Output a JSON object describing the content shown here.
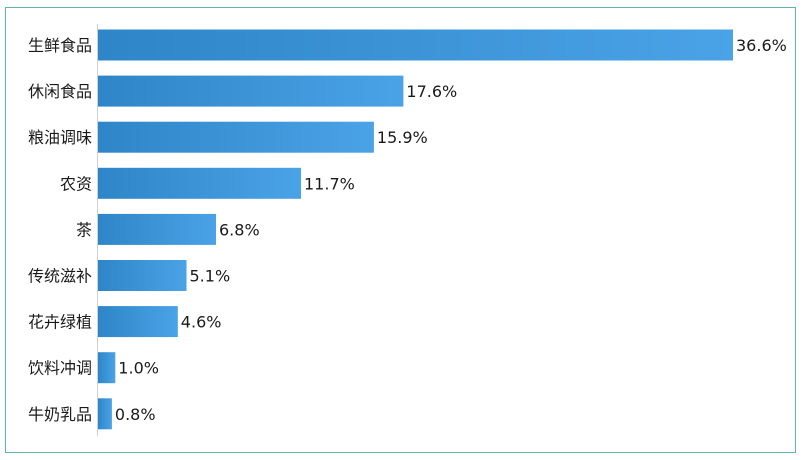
{
  "chart_data": {
    "type": "bar",
    "orientation": "horizontal",
    "categories": [
      "生鲜食品",
      "休闲食品",
      "粮油调味",
      "农资",
      "茶",
      "传统滋补",
      "花卉绿植",
      "饮料冲调",
      "牛奶乳品"
    ],
    "values": [
      36.6,
      17.6,
      15.9,
      11.7,
      6.8,
      5.1,
      4.6,
      1.0,
      0.8
    ],
    "value_labels": [
      "36.6%",
      "17.6%",
      "15.9%",
      "11.7%",
      "6.8%",
      "5.1%",
      "4.6%",
      "1.0%",
      "0.8%"
    ],
    "title": "",
    "xlabel": "",
    "ylabel": "",
    "xlim": [
      0,
      36.6
    ],
    "grid": false,
    "legend": "none",
    "colors": {
      "bar_start": "#2e86c8",
      "bar_end": "#4aa3e6",
      "border": "#5fb6a8"
    }
  }
}
